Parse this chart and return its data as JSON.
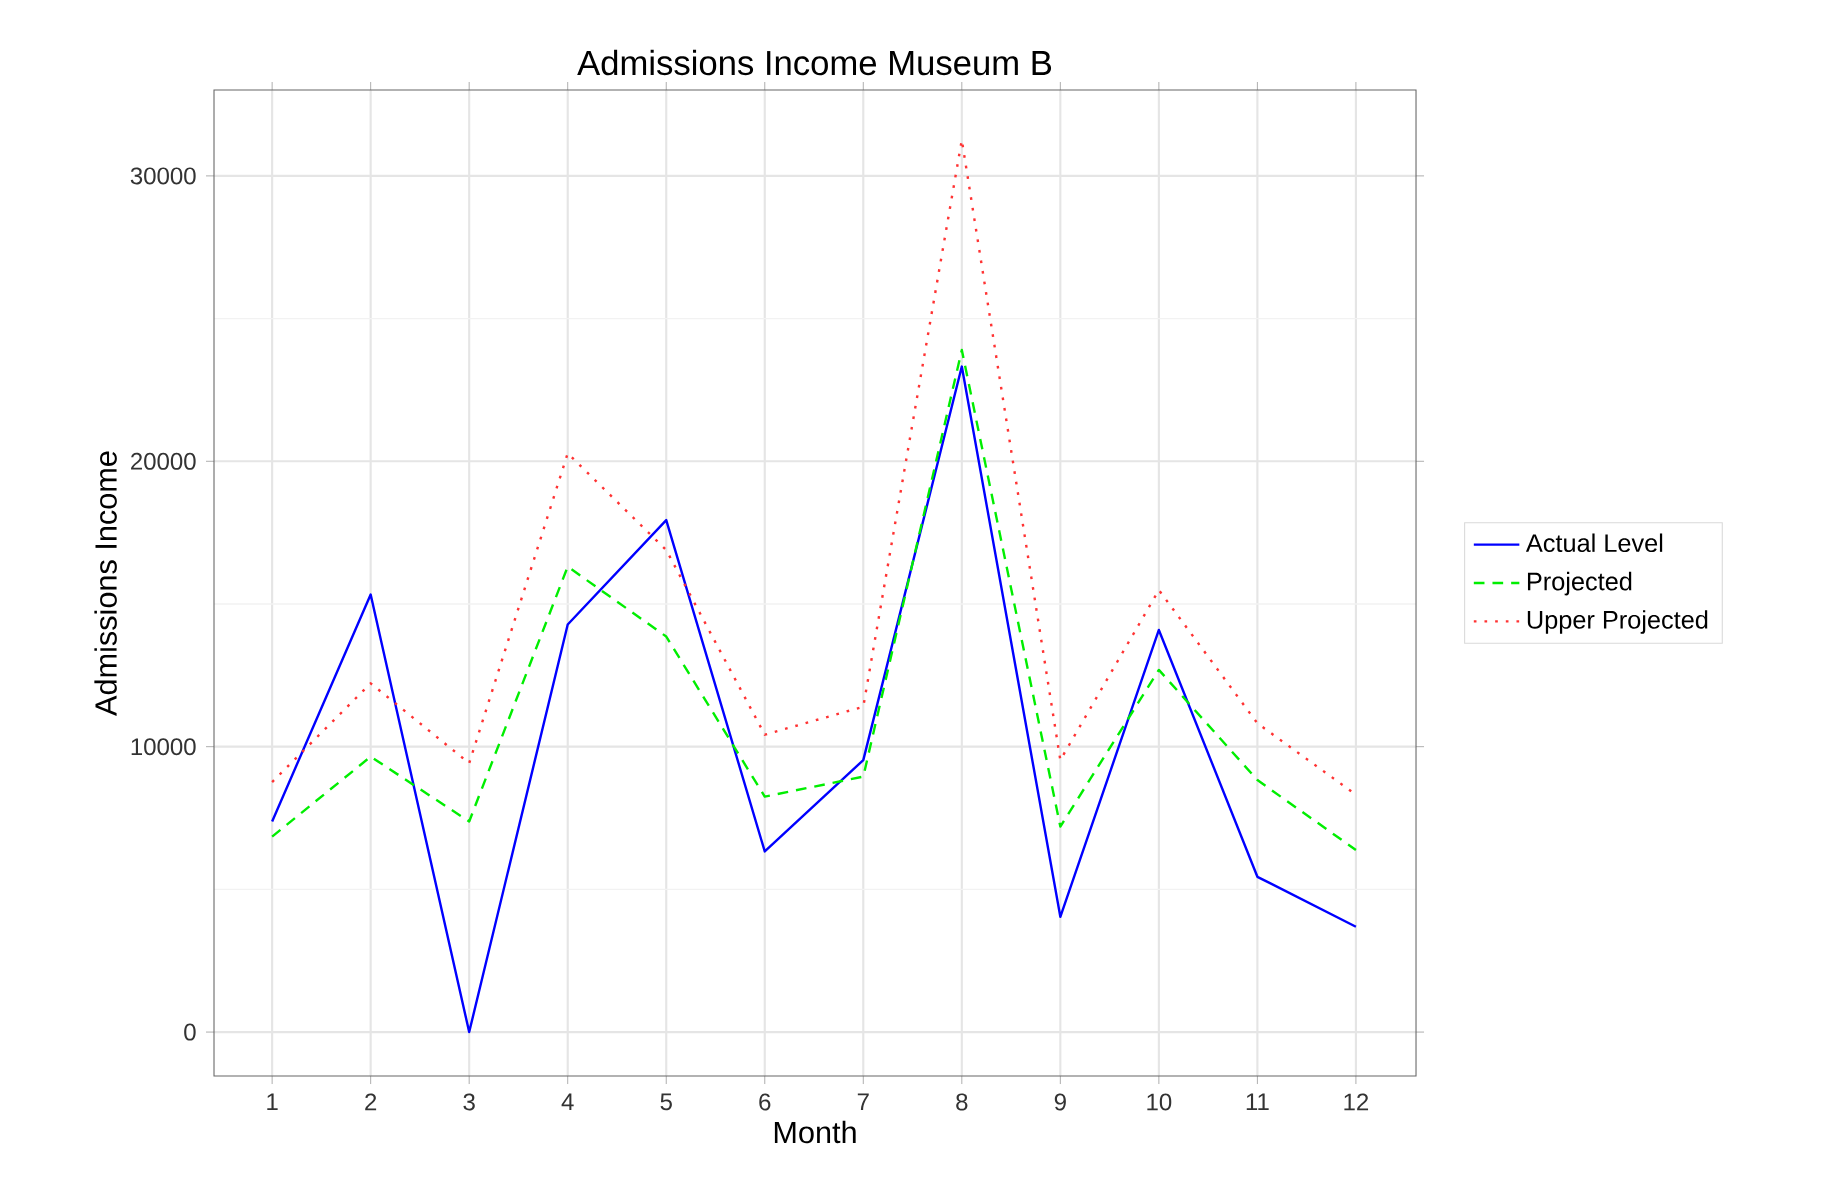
{
  "chart_data": {
    "type": "line",
    "title": "Admissions Income Museum B",
    "xlabel": "Month",
    "ylabel": "Admissions Income",
    "x": [
      1,
      2,
      3,
      4,
      5,
      6,
      7,
      8,
      9,
      10,
      11,
      12
    ],
    "series": [
      {
        "name": "Actual Level",
        "color": "#0000ff",
        "line_style": "solid",
        "values": [
          7380,
          15330,
          0,
          14280,
          17940,
          6330,
          9530,
          23320,
          4040,
          14090,
          5440,
          3690
        ]
      },
      {
        "name": "Projected",
        "color": "#00ee00",
        "line_style": "dashed",
        "values": [
          6850,
          9650,
          7380,
          16310,
          13860,
          8250,
          8950,
          23900,
          7200,
          12690,
          8830,
          6380
        ]
      },
      {
        "name": "Upper Projected",
        "color": "#ff3333",
        "line_style": "dotted",
        "values": [
          8760,
          12220,
          9420,
          20280,
          16890,
          10420,
          11400,
          31260,
          9530,
          15490,
          10820,
          8320
        ]
      }
    ],
    "xlim": [
      0.41,
      12.61
    ],
    "ylim": [
      -1540,
      33010
    ],
    "xticks": [
      1,
      2,
      3,
      4,
      5,
      6,
      7,
      8,
      9,
      10,
      11,
      12
    ],
    "yticks": [
      0,
      10000,
      20000,
      30000
    ],
    "grid": true,
    "legend": "right",
    "marker": "none"
  }
}
